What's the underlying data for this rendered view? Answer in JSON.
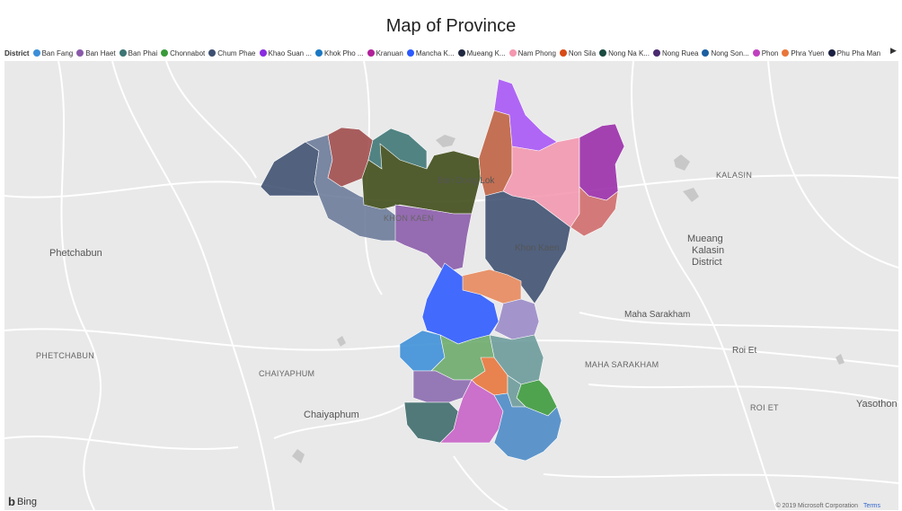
{
  "title": "Map of Province",
  "legend": {
    "title": "District",
    "items": [
      {
        "label": "Ban Fang",
        "color": "#3b8fd8"
      },
      {
        "label": "Ban Haet",
        "color": "#8a5aaa"
      },
      {
        "label": "Ban Phai",
        "color": "#3d7575"
      },
      {
        "label": "Chonnabot",
        "color": "#3a9a3a"
      },
      {
        "label": "Chum Phae",
        "color": "#3d4f70"
      },
      {
        "label": "Khao Suan ...",
        "color": "#8a2be2"
      },
      {
        "label": "Khok Pho ...",
        "color": "#1a78c2"
      },
      {
        "label": "Kranuan",
        "color": "#b0209a"
      },
      {
        "label": "Mancha K...",
        "color": "#2b59ff"
      },
      {
        "label": "Mueang K...",
        "color": "#202840"
      },
      {
        "label": "Nam Phong",
        "color": "#f497b0"
      },
      {
        "label": "Non Sila",
        "color": "#d84a15"
      },
      {
        "label": "Nong Na K...",
        "color": "#1a4a40"
      },
      {
        "label": "Nong Ruea",
        "color": "#4a2a70"
      },
      {
        "label": "Nong Son...",
        "color": "#1a5fa0"
      },
      {
        "label": "Phon",
        "color": "#c040c0"
      },
      {
        "label": "Phra Yuen",
        "color": "#e8763a"
      },
      {
        "label": "Phu Pha Man",
        "color": "#1a2040"
      }
    ],
    "more_arrow": "▶"
  },
  "map": {
    "places": [
      {
        "name": "Phetchabun",
        "style": "big"
      },
      {
        "name": "PHETCHABUN",
        "style": "caps"
      },
      {
        "name": "CHAIYAPHUM",
        "style": "caps"
      },
      {
        "name": "Chaiyaphum",
        "style": "big"
      },
      {
        "name": "KHON KAEN",
        "style": "caps"
      },
      {
        "name": "Ban Dong Lok",
        "style": "normal"
      },
      {
        "name": "Khon Kaen",
        "style": "normal"
      },
      {
        "name": "KALASIN",
        "style": "caps"
      },
      {
        "name": "Mueang",
        "style": "big"
      },
      {
        "name": "Kalasin",
        "style": "big"
      },
      {
        "name": "District",
        "style": "big"
      },
      {
        "name": "Maha Sarakham",
        "style": "normal"
      },
      {
        "name": "MAHA SARAKHAM",
        "style": "caps"
      },
      {
        "name": "Roi Et",
        "style": "normal"
      },
      {
        "name": "ROI ET",
        "style": "caps"
      },
      {
        "name": "Yasothon",
        "style": "big"
      }
    ],
    "attribution": "Bing",
    "copyright": "© 2019 Microsoft Corporation",
    "terms": "Terms"
  }
}
